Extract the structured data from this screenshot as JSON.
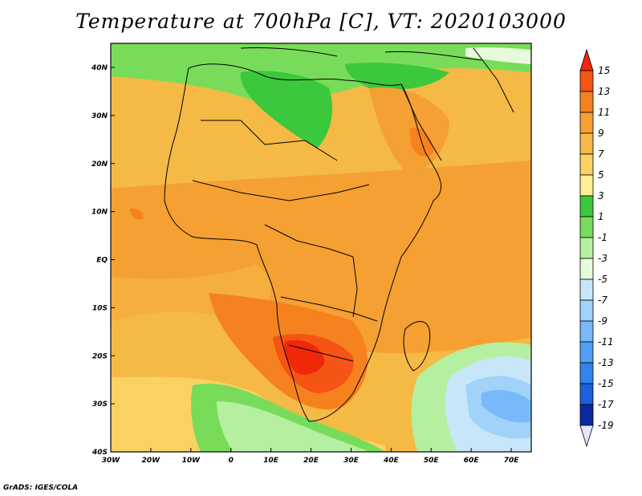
{
  "title": "Temperature at 700hPa [C], VT: 2020103000",
  "credit": "GrADS: IGES/COLA",
  "lon_labels": [
    "30W",
    "20W",
    "10W",
    "0",
    "10E",
    "20E",
    "30E",
    "40E",
    "50E",
    "60E",
    "70E"
  ],
  "lat_labels": [
    "40N",
    "30N",
    "20N",
    "10N",
    "EQ",
    "10S",
    "20S",
    "30S",
    "40S"
  ],
  "colorbar": {
    "labels": [
      "15",
      "13",
      "11",
      "9",
      "7",
      "5",
      "3",
      "1",
      "-1",
      "-3",
      "-5",
      "-7",
      "-9",
      "-11",
      "-13",
      "-15",
      "-17",
      "-19"
    ],
    "colors": [
      "#f0280a",
      "#f55514",
      "#f5821e",
      "#f5a032",
      "#f5b946",
      "#fad264",
      "#fff096",
      "#3cc83c",
      "#78dc5a",
      "#b4f0a0",
      "#e6fadc",
      "#c8e6fa",
      "#a0d2fa",
      "#78b9fa",
      "#50a0f5",
      "#3282f0",
      "#1e60dc",
      "#0a28a0",
      "#14146e"
    ]
  }
}
